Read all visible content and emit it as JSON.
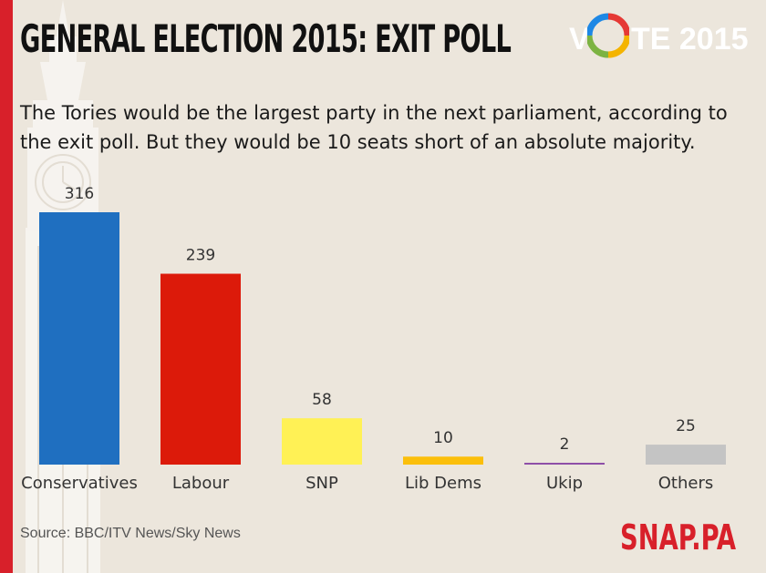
{
  "header": {
    "title": "GENERAL ELECTION 2015: EXIT POLL",
    "subtitle": "The Tories would be the largest party in the next parliament, according to the exit poll. But they would be 10 seats short of an absolute majority."
  },
  "logo": {
    "letters_before": "V",
    "letters_after": "TE 2015"
  },
  "footer": {
    "source": "Source: BBC/ITV News/Sky News",
    "brand": "SNAP.PA"
  },
  "colors": {
    "accent": "#d8202a",
    "background": "#ece6dc"
  },
  "chart_data": {
    "type": "bar",
    "title": "GENERAL ELECTION 2015: EXIT POLL",
    "xlabel": "",
    "ylabel": "",
    "grid": false,
    "categories": [
      "Conservatives",
      "Labour",
      "SNP",
      "Lib Dems",
      "Ukip",
      "Others"
    ],
    "values": [
      316,
      239,
      58,
      10,
      2,
      25
    ],
    "colors": [
      "#1f6fc0",
      "#dc1a0a",
      "#fff155",
      "#fbbf0b",
      "#8e4fa8",
      "#c4c4c4"
    ],
    "ylim": [
      0,
      316
    ]
  }
}
